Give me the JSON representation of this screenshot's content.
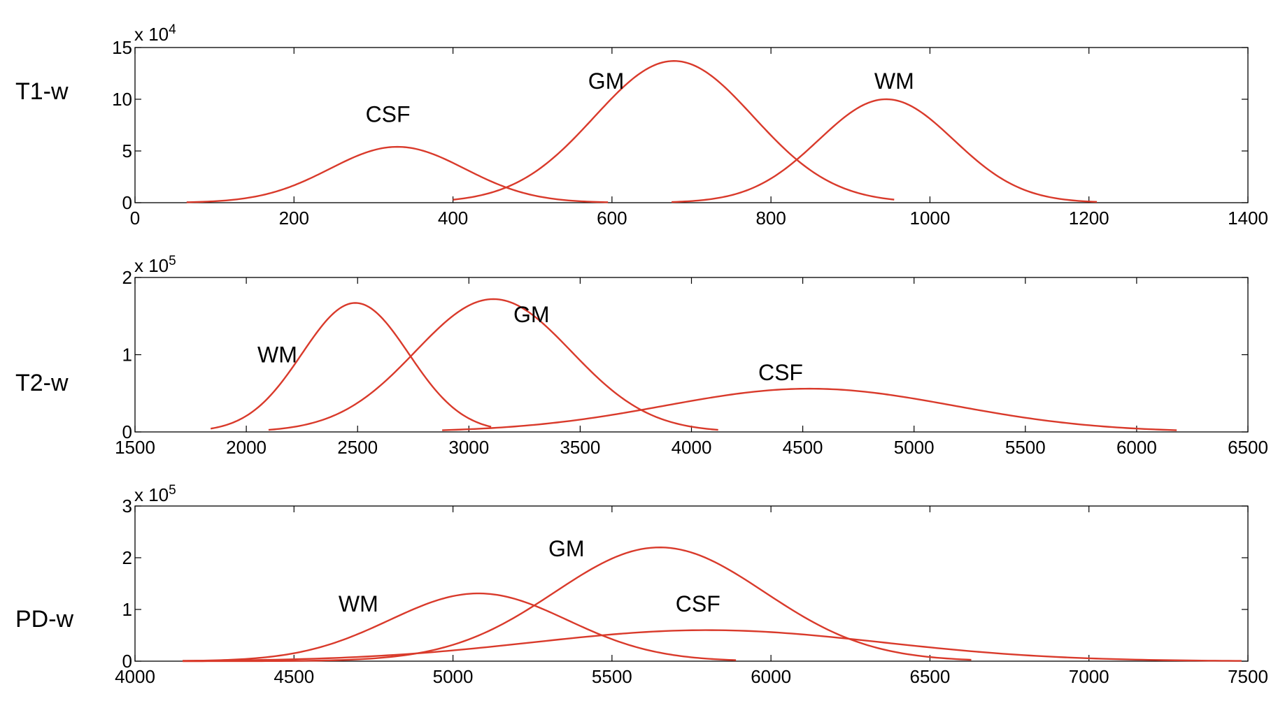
{
  "chart_data": [
    {
      "type": "line",
      "row_label": "T1-w",
      "xlim": [
        0,
        1400
      ],
      "ylim": [
        0,
        15
      ],
      "x_ticks": [
        "0",
        "200",
        "400",
        "600",
        "800",
        "1000",
        "1200",
        "1400"
      ],
      "y_ticks": [
        "0",
        "5",
        "10",
        "15"
      ],
      "y_multiplier": {
        "base": "x 10",
        "exp": "4"
      },
      "grid": false,
      "line_color": "#d93a2b",
      "series": [
        {
          "name": "CSF",
          "mean": 330,
          "sd": 85,
          "peak": 5.4,
          "x_range": [
            65,
            595
          ]
        },
        {
          "name": "GM",
          "mean": 678,
          "sd": 100,
          "peak": 13.7,
          "x_range": [
            400,
            955
          ]
        },
        {
          "name": "WM",
          "mean": 945,
          "sd": 85,
          "peak": 10.0,
          "x_range": [
            675,
            1210
          ]
        }
      ],
      "annotations": [
        {
          "text": "CSF",
          "x": 290,
          "y": 7.8
        },
        {
          "text": "GM",
          "x": 570,
          "y": 11.0
        },
        {
          "text": "WM",
          "x": 930,
          "y": 11.0
        }
      ]
    },
    {
      "type": "line",
      "row_label": "T2-w",
      "xlim": [
        1500,
        6500
      ],
      "ylim": [
        0,
        2
      ],
      "x_ticks": [
        "1500",
        "2000",
        "2500",
        "3000",
        "3500",
        "4000",
        "4500",
        "5000",
        "5500",
        "6000",
        "6500"
      ],
      "y_ticks": [
        "0",
        "1",
        "2"
      ],
      "y_multiplier": {
        "base": "x 10",
        "exp": "5"
      },
      "grid": false,
      "line_color": "#d93a2b",
      "series": [
        {
          "name": "WM",
          "mean": 2490,
          "sd": 240,
          "peak": 1.67,
          "x_range": [
            1840,
            3100
          ]
        },
        {
          "name": "GM",
          "mean": 3110,
          "sd": 350,
          "peak": 1.72,
          "x_range": [
            2100,
            4120
          ]
        },
        {
          "name": "CSF",
          "mean": 4530,
          "sd": 650,
          "peak": 0.56,
          "x_range": [
            2880,
            6180
          ]
        }
      ],
      "annotations": [
        {
          "text": "WM",
          "x": 2050,
          "y": 0.9
        },
        {
          "text": "GM",
          "x": 3200,
          "y": 1.42
        },
        {
          "text": "CSF",
          "x": 4300,
          "y": 0.67
        }
      ]
    },
    {
      "type": "line",
      "row_label": "PD-w",
      "xlim": [
        4000,
        7500
      ],
      "ylim": [
        0,
        3
      ],
      "x_ticks": [
        "4000",
        "4500",
        "5000",
        "5500",
        "6000",
        "6500",
        "7000",
        "7500"
      ],
      "y_ticks": [
        "0",
        "1",
        "2",
        "3"
      ],
      "y_multiplier": {
        "base": "x 10",
        "exp": "5"
      },
      "grid": false,
      "line_color": "#d93a2b",
      "series": [
        {
          "name": "WM",
          "mean": 5080,
          "sd": 280,
          "peak": 1.31,
          "x_range": [
            4150,
            5890
          ]
        },
        {
          "name": "GM",
          "mean": 5650,
          "sd": 330,
          "peak": 2.2,
          "x_range": [
            4150,
            6630
          ]
        },
        {
          "name": "CSF",
          "mean": 5800,
          "sd": 550,
          "peak": 0.6,
          "x_range": [
            4150,
            7480
          ]
        }
      ],
      "annotations": [
        {
          "text": "WM",
          "x": 4640,
          "y": 0.96
        },
        {
          "text": "GM",
          "x": 5300,
          "y": 2.03
        },
        {
          "text": "CSF",
          "x": 5700,
          "y": 0.96
        }
      ]
    }
  ]
}
